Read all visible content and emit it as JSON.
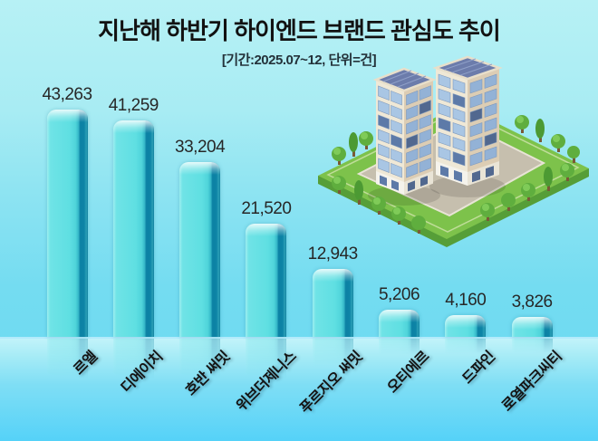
{
  "title": "지난해 하반기 하이엔드 브랜드 관심도 추이",
  "subtitle": "[기간:2025.07~12, 단위=건]",
  "illustration": {
    "name": "apartment-buildings-isometric"
  },
  "colors": {
    "background_top": "#b7f1f5",
    "background_bottom": "#55d2f8",
    "bar_body": "#5fdfe2",
    "bar_edge_dark": "#0c81a4",
    "bar_cap_highlight": "#ffffff",
    "title_text": "#121212",
    "value_text": "#272727",
    "category_text": "#141414"
  },
  "chart_data": {
    "type": "bar",
    "title": "지난해 하반기 하이엔드 브랜드 관심도 추이",
    "period": "2025.07~12",
    "unit": "건",
    "categories": [
      "르엘",
      "디에이치",
      "호반 써밋",
      "위브더제니스",
      "푸르지오 써밋",
      "오티에르",
      "드파인",
      "로열파크씨티"
    ],
    "values": [
      43263,
      41259,
      33204,
      21520,
      12943,
      5206,
      4160,
      3826
    ],
    "value_labels": [
      "43,263",
      "41,259",
      "33,204",
      "21,520",
      "12,943",
      "5,206",
      "4,160",
      "3,826"
    ],
    "xlabel": "",
    "ylabel": "",
    "ylim": [
      0,
      45000
    ],
    "grid": false,
    "legend": "none",
    "bar_orientation": "vertical",
    "category_label_rotation_deg": -45
  }
}
